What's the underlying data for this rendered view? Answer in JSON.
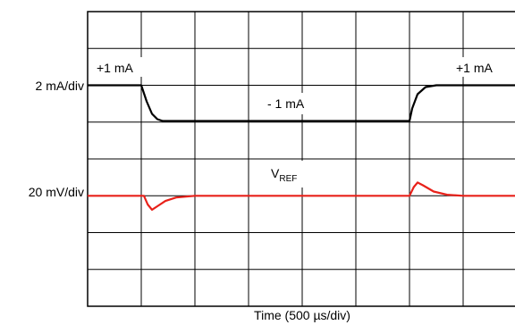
{
  "chart_data": {
    "type": "line",
    "grid": true,
    "divisions": {
      "x": 8,
      "y": 8
    },
    "xlabel": "Time (500 µs/div)",
    "channels": [
      {
        "scale_label": "2 mA/div",
        "unit": "mA/div",
        "scale": 2,
        "color": "#000000"
      },
      {
        "scale_label": "20 mV/div",
        "scale": 20,
        "unit": "mV/div",
        "color": "#e8211a"
      }
    ],
    "series": [
      {
        "name": "",
        "color": "#000000",
        "x_div": [
          0,
          1.0,
          1.1,
          1.2,
          1.3,
          1.4,
          1.6,
          2.0,
          6.0,
          6.05,
          6.15,
          6.3,
          6.5,
          6.8,
          7.2,
          8.0
        ],
        "y_div": [
          2.0,
          2.0,
          1.55,
          1.2,
          1.05,
          1.0,
          1.0,
          1.0,
          1.0,
          1.35,
          1.75,
          1.95,
          2.0,
          2.0,
          2.0,
          2.0
        ]
      },
      {
        "name": "V_REF",
        "color": "#e8211a",
        "x_div": [
          0,
          1.05,
          1.12,
          1.2,
          1.3,
          1.45,
          1.65,
          2.0,
          2.4,
          6.0,
          6.08,
          6.15,
          6.25,
          6.45,
          6.7,
          7.0,
          8.0
        ],
        "y_div": [
          0.0,
          0.0,
          -0.25,
          -0.4,
          -0.3,
          -0.15,
          -0.05,
          0.0,
          0.0,
          0.0,
          0.25,
          0.38,
          0.3,
          0.12,
          0.03,
          0.0,
          0.0
        ]
      }
    ],
    "annotations": {
      "left_plus": "+1 mA",
      "right_plus": "+1 mA",
      "minus": "- 1 mA",
      "vref_main": "V",
      "vref_sub": "REF"
    }
  }
}
